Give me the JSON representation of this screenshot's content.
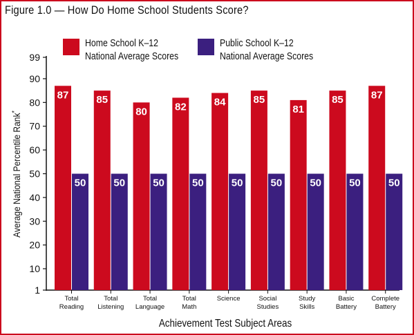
{
  "title": "Figure 1.0 — How Do Home School Students Score?",
  "colors": {
    "home": "#cc0a1e",
    "public": "#3b1f7f",
    "border": "#cc0a1e"
  },
  "legend": {
    "home": {
      "line1": "Home School K–12",
      "line2": "National Average Scores"
    },
    "public": {
      "line1": "Public School K–12",
      "line2": "National Average Scores"
    }
  },
  "chart_data": {
    "type": "bar",
    "title": "Figure 1.0 — How Do Home School Students Score?",
    "xlabel": "Achievement Test Subject Areas",
    "ylabel": "Average National Percentile Rank",
    "ylabel_mark": "*",
    "ylim": [
      1,
      99
    ],
    "yticks": [
      1,
      10,
      20,
      30,
      40,
      50,
      60,
      70,
      80,
      90,
      99
    ],
    "grid": false,
    "legend_position": "top",
    "categories": [
      [
        "Total",
        "Reading"
      ],
      [
        "Total",
        "Listening"
      ],
      [
        "Total",
        "Language"
      ],
      [
        "Total",
        "Math"
      ],
      [
        "Science"
      ],
      [
        "Social",
        "Studies"
      ],
      [
        "Study",
        "Skills"
      ],
      [
        "Basic",
        "Battery"
      ],
      [
        "Complete",
        "Battery"
      ]
    ],
    "series": [
      {
        "name": "Home School K–12 National Average Scores",
        "values": [
          87,
          85,
          80,
          82,
          84,
          85,
          81,
          85,
          87
        ]
      },
      {
        "name": "Public School K–12 National Average Scores",
        "values": [
          50,
          50,
          50,
          50,
          50,
          50,
          50,
          50,
          50
        ]
      }
    ]
  }
}
